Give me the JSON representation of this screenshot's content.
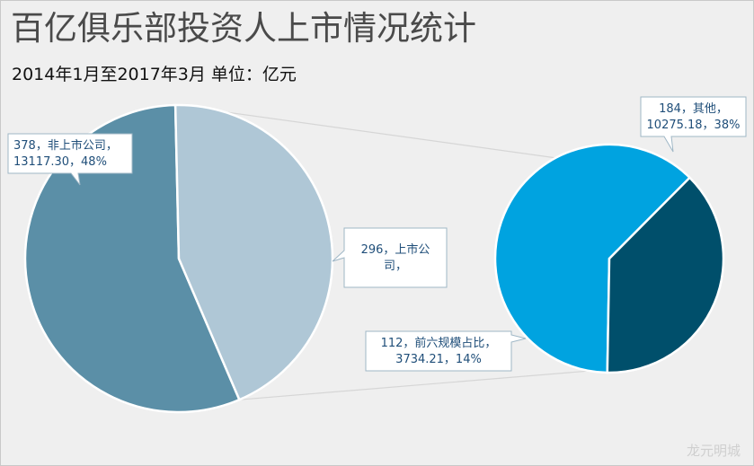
{
  "chart_data": {
    "type": "pie",
    "title": "百亿俱乐部投资人上市情况统计",
    "subtitle": "2014年1月至2017年3月  单位：亿元",
    "main_pie": {
      "slices": [
        {
          "label_lines": [
            "378，非上市公司，",
            "13117.30，48%"
          ],
          "count": 378,
          "category": "非上市公司",
          "amount": 13117.3,
          "percent": 48,
          "color": "#5b8fa7"
        },
        {
          "label_lines": [
            "296，上市公",
            "司，"
          ],
          "count": 296,
          "category": "上市公司",
          "color": "#afc7d6"
        }
      ]
    },
    "secondary_pie": {
      "slices": [
        {
          "label_lines": [
            "184，其他，",
            "10275.18，38%"
          ],
          "count": 184,
          "category": "其他",
          "amount": 10275.18,
          "percent": 38,
          "color": "#00a3e0"
        },
        {
          "label_lines": [
            "112，前六规模占比，",
            "3734.21，14%"
          ],
          "count": 112,
          "category": "前六规模占比",
          "amount": 3734.21,
          "percent": 14,
          "color": "#004f6b"
        }
      ]
    },
    "watermark": "龙元明城",
    "colors": {
      "background": "#efefef",
      "connector": "#d6d6d6",
      "callout_fill": "#ffffff",
      "callout_border": "#9fb7c6",
      "callout_text": "#1f4e79",
      "slice_separator": "#ffffff"
    }
  }
}
